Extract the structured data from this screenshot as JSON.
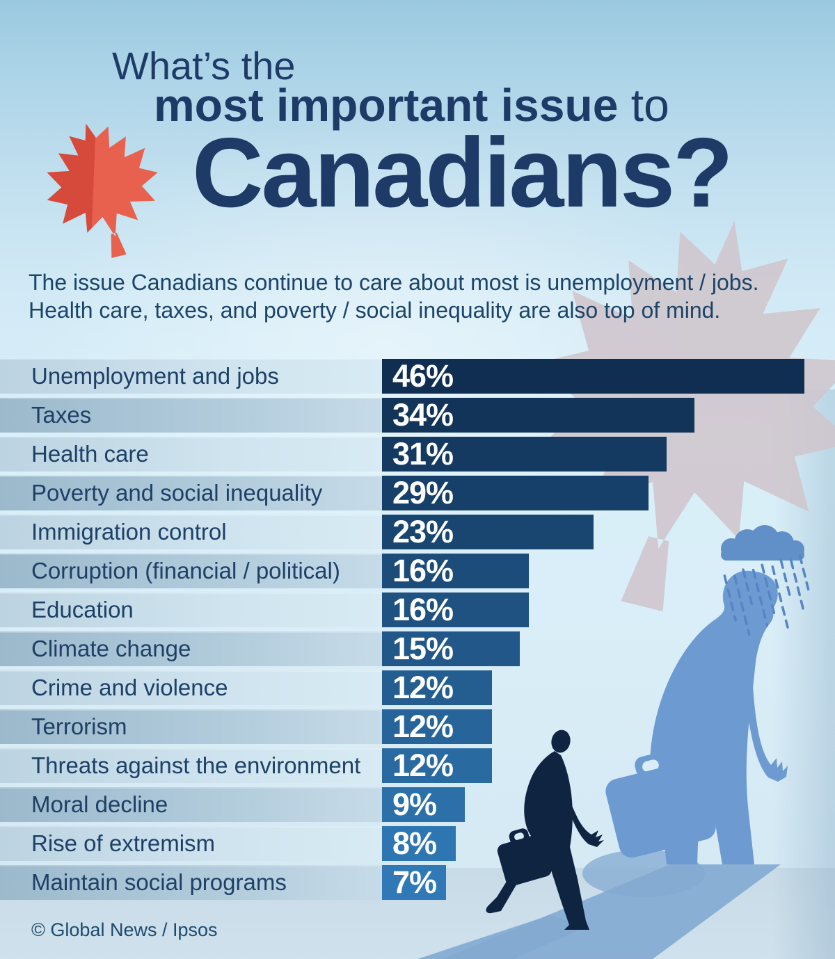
{
  "title": {
    "line1": "What’s the",
    "line2_bold": "most important issue",
    "line2_regular": " to",
    "line3": "Canadians?"
  },
  "subtitle": {
    "line1": "The issue Canadians continue to care about most is unemployment / jobs.",
    "line2": "Health care, taxes, and poverty / social inequality are also top of mind."
  },
  "footer": {
    "credit": "© Global News / Ipsos"
  },
  "icons": {
    "red_maple_leaf": "maple-leaf-icon",
    "watermark_maple_leaf": "maple-leaf-watermark-icon",
    "rain_cloud": "rain-cloud-icon",
    "businessman_large": "sad-businessman-with-briefcase-silhouette",
    "businessman_small": "walking-businessman-with-briefcase-silhouette"
  },
  "colors": {
    "title_navy": "#1d3b66",
    "label_navy": "#1e4066",
    "subtitle_navy": "#1b4468",
    "bar_value_text": "#ffffff",
    "leaf_red_dark": "#d54a3b",
    "leaf_red_light": "#e7614e",
    "watermark_leaf": "#cfc5cc",
    "figure_light_blue": "#6d9bd1",
    "figure_dark_navy": "#0e2440",
    "shadow_blue": "#83aad2",
    "floor": "#cde0ea",
    "background_top": "#9bc9df",
    "background_mid": "#d9f0f9"
  },
  "chart_data": {
    "type": "bar",
    "orientation": "horizontal",
    "title": "What’s the most important issue to Canadians?",
    "xlabel": "",
    "ylabel": "",
    "unit": "%",
    "xlim": [
      0,
      50
    ],
    "grid": false,
    "legend": "none",
    "value_labels": "inside-bar-left",
    "categories": [
      "Unemployment and jobs",
      "Taxes",
      "Health care",
      "Poverty and social inequality",
      "Immigration control",
      "Corruption (financial / political)",
      "Education",
      "Climate change",
      "Crime and violence",
      "Terrorism",
      "Threats against the environment",
      "Moral decline",
      "Rise of extremism",
      "Maintain social programs"
    ],
    "values": [
      46,
      34,
      31,
      29,
      23,
      16,
      16,
      15,
      12,
      12,
      12,
      9,
      8,
      7
    ],
    "bar_colors": [
      "#102e51",
      "#123459",
      "#143a61",
      "#164069",
      "#194671",
      "#1c4c79",
      "#1f5281",
      "#215889",
      "#245e91",
      "#266499",
      "#296aa1",
      "#2b70a9",
      "#2e76b1",
      "#3079b6"
    ]
  }
}
